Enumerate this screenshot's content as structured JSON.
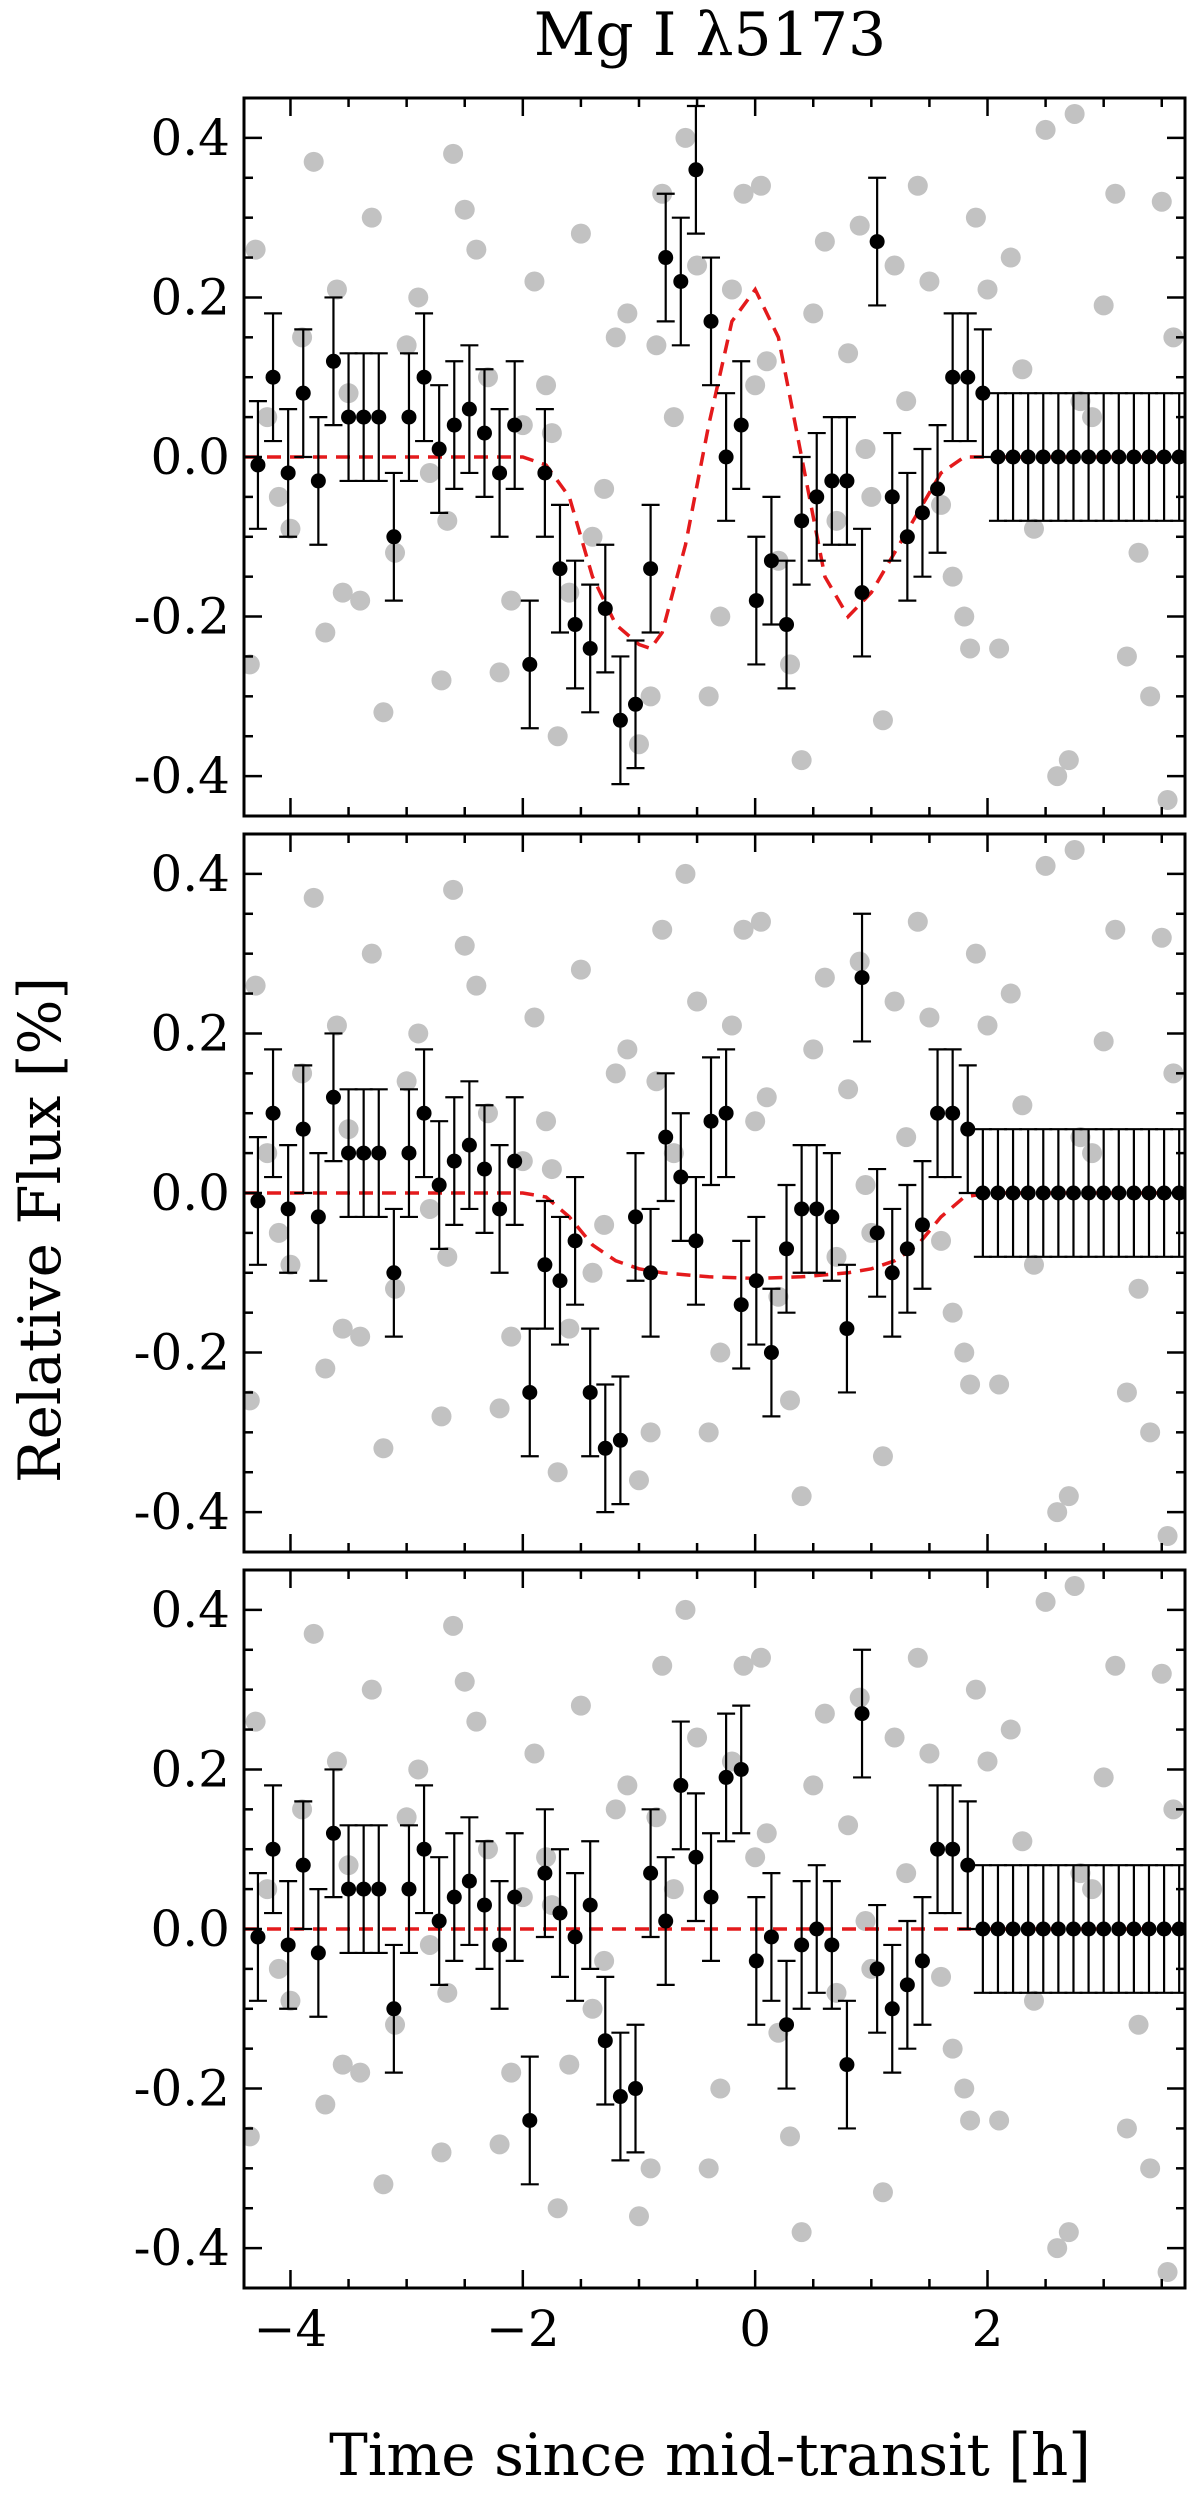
{
  "figure": {
    "title": "Mg I λ5173",
    "ylabel": "Relative Flux [%]",
    "xlabel": "Time since mid-transit [h]"
  },
  "colors": {
    "data_points": "#000000",
    "background_points": "#c2c2c2",
    "model_line": "#e41a1c",
    "axes": "#000000"
  },
  "chart_data": [
    {
      "type": "scatter",
      "panel": "top",
      "title": "Mg I λ5173",
      "xlim": [
        -4.4,
        3.7
      ],
      "ylim": [
        -0.45,
        0.45
      ],
      "xticks": [
        -4,
        -2,
        0,
        2
      ],
      "yticks": [
        -0.4,
        -0.2,
        0.0,
        0.2,
        0.4
      ],
      "ytick_labels": [
        "-0.4",
        "-0.2",
        "0.0",
        "0.2",
        "0.4"
      ],
      "xtick_labels": [],
      "binned": {
        "x": [
          -4.28,
          -4.15,
          -4.02,
          -3.89,
          -3.76,
          -3.63,
          -3.5,
          -3.37,
          -3.24,
          -3.11,
          -2.98,
          -2.85,
          -2.72,
          -2.59,
          -2.46,
          -2.33,
          -2.2,
          -2.07,
          -1.94,
          -1.81,
          -1.68,
          -1.55,
          -1.42,
          -1.29,
          -1.16,
          -1.03,
          -0.9,
          -0.77,
          -0.64,
          -0.51,
          -0.38,
          -0.25,
          -0.12,
          0.01,
          0.14,
          0.27,
          0.4,
          0.53,
          0.66,
          0.79,
          0.92,
          1.05,
          1.18,
          1.31,
          1.44,
          1.57,
          1.7,
          1.83,
          1.96,
          2.09,
          2.22,
          2.35,
          2.48,
          2.61,
          2.74,
          2.87,
          3.0,
          3.13,
          3.26,
          3.39,
          3.52,
          3.65
        ],
        "y": [
          -0.01,
          0.1,
          -0.02,
          0.08,
          -0.03,
          0.12,
          0.05,
          0.05,
          0.05,
          -0.1,
          0.05,
          0.1,
          0.01,
          0.04,
          0.06,
          0.03,
          -0.02,
          0.04,
          -0.26,
          -0.02,
          -0.14,
          -0.21,
          -0.24,
          -0.19,
          -0.33,
          -0.31,
          -0.14,
          0.25,
          0.22,
          0.36,
          0.17,
          0.0,
          0.04,
          -0.18,
          -0.13,
          -0.21,
          -0.08,
          -0.05,
          -0.03,
          -0.03,
          -0.17,
          0.27,
          -0.05,
          -0.1,
          -0.07,
          -0.04,
          0.1,
          0.1,
          0.08,
          0.0,
          0.0,
          0.0,
          0.0,
          0.0,
          0.0,
          0.0,
          0.0,
          0.0,
          0.0,
          0.0,
          0.0,
          0.0
        ],
        "err": 0.08
      },
      "background": {
        "x": [
          -4.3,
          -4.1,
          -3.9,
          -3.7,
          -3.5,
          -3.3,
          -3.1,
          -2.9,
          -2.7,
          -2.5,
          -2.3,
          -2.1,
          -1.9,
          -1.7,
          -1.5,
          -1.3,
          -1.1,
          -0.9,
          -0.7,
          -0.5,
          -0.3,
          -0.1,
          0.1,
          0.3,
          0.5,
          0.7,
          0.9,
          1.1,
          1.3,
          1.5,
          1.7,
          1.9,
          2.1,
          2.3,
          2.5,
          2.7,
          2.9,
          3.1,
          3.3,
          3.5,
          -4.2,
          -3.8,
          -3.4,
          -3.0,
          -2.6,
          -2.2,
          -1.8,
          -1.4,
          -1.0,
          -0.6,
          -0.2,
          0.2,
          0.6,
          1.0,
          1.4,
          1.8,
          2.2,
          2.6,
          3.0,
          3.4,
          -4.0,
          -3.6,
          -3.2,
          -2.8,
          -2.4,
          -2.0,
          -1.6,
          -1.2,
          -0.8,
          -0.4,
          0.0,
          0.4,
          0.8,
          1.2,
          1.6,
          2.0,
          2.4,
          2.8,
          3.2,
          3.6
        ],
        "y": [
          0.26,
          -0.05,
          0.15,
          -0.22,
          0.08,
          0.3,
          -0.12,
          0.2,
          -0.28,
          0.31,
          0.1,
          -0.18,
          0.22,
          -0.35,
          0.28,
          -0.04,
          0.18,
          -0.3,
          0.05,
          0.24,
          -0.2,
          0.33,
          0.12,
          -0.26,
          0.18,
          -0.08,
          0.29,
          -0.33,
          0.07,
          0.22,
          -0.15,
          0.3,
          -0.24,
          0.11,
          0.41,
          -0.38,
          0.05,
          0.33,
          -0.12,
          0.32,
          0.05,
          0.37,
          -0.18,
          0.14,
          0.38,
          -0.27,
          0.09,
          -0.1,
          -0.36,
          0.4,
          0.21,
          -0.13,
          0.27,
          -0.05,
          0.34,
          -0.2,
          0.25,
          -0.4,
          0.19,
          -0.3,
          -0.09,
          0.21,
          -0.32,
          -0.02,
          0.26,
          0.04,
          -0.17,
          0.15,
          0.33,
          -0.3,
          0.09,
          -0.38,
          0.13,
          0.24,
          -0.06,
          0.21,
          -0.09,
          0.07,
          -0.25,
          0.15
        ],
        "extra": [
          [
            -4.35,
            -0.26
          ],
          [
            -3.55,
            -0.17
          ],
          [
            -2.65,
            -0.08
          ],
          [
            -1.75,
            0.03
          ],
          [
            -0.85,
            0.14
          ],
          [
            0.05,
            0.34
          ],
          [
            0.95,
            0.01
          ],
          [
            1.85,
            -0.24
          ],
          [
            2.75,
            0.43
          ],
          [
            3.55,
            -0.43
          ]
        ]
      },
      "model": {
        "x": [
          -4.4,
          -2.2,
          -2.0,
          -1.8,
          -1.6,
          -1.4,
          -1.2,
          -1.0,
          -0.9,
          -0.8,
          -0.6,
          -0.4,
          -0.2,
          0.0,
          0.2,
          0.4,
          0.6,
          0.8,
          1.0,
          1.2,
          1.4,
          1.6,
          1.8,
          2.0,
          3.7
        ],
        "y": [
          0.0,
          0.0,
          0.0,
          -0.01,
          -0.05,
          -0.15,
          -0.21,
          -0.235,
          -0.24,
          -0.22,
          -0.11,
          0.04,
          0.17,
          0.21,
          0.15,
          0.0,
          -0.15,
          -0.2,
          -0.17,
          -0.12,
          -0.07,
          -0.02,
          0.0,
          0.0,
          0.0
        ]
      }
    },
    {
      "type": "scatter",
      "panel": "middle",
      "xlim": [
        -4.4,
        3.7
      ],
      "ylim": [
        -0.45,
        0.45
      ],
      "xticks": [
        -4,
        -2,
        0,
        2
      ],
      "yticks": [
        -0.4,
        -0.2,
        0.0,
        0.2,
        0.4
      ],
      "ytick_labels": [
        "-0.4",
        "-0.2",
        "0.0",
        "0.2",
        "0.4"
      ],
      "xtick_labels": [],
      "binned": {
        "x": [
          -4.28,
          -4.15,
          -4.02,
          -3.89,
          -3.76,
          -3.63,
          -3.5,
          -3.37,
          -3.24,
          -3.11,
          -2.98,
          -2.85,
          -2.72,
          -2.59,
          -2.46,
          -2.33,
          -2.2,
          -2.07,
          -1.94,
          -1.81,
          -1.68,
          -1.55,
          -1.42,
          -1.29,
          -1.16,
          -1.03,
          -0.9,
          -0.77,
          -0.64,
          -0.51,
          -0.38,
          -0.25,
          -0.12,
          0.01,
          0.14,
          0.27,
          0.4,
          0.53,
          0.66,
          0.79,
          0.92,
          1.05,
          1.18,
          1.31,
          1.44,
          1.57,
          1.7,
          1.83,
          1.96,
          2.09,
          2.22,
          2.35,
          2.48,
          2.61,
          2.74,
          2.87,
          3.0,
          3.13,
          3.26,
          3.39,
          3.52,
          3.65
        ],
        "y": [
          -0.01,
          0.1,
          -0.02,
          0.08,
          -0.03,
          0.12,
          0.05,
          0.05,
          0.05,
          -0.1,
          0.05,
          0.1,
          0.01,
          0.04,
          0.06,
          0.03,
          -0.02,
          0.04,
          -0.25,
          -0.09,
          -0.11,
          -0.06,
          -0.25,
          -0.32,
          -0.31,
          -0.03,
          -0.1,
          0.07,
          0.02,
          -0.06,
          0.09,
          0.1,
          -0.14,
          -0.11,
          -0.2,
          -0.07,
          -0.02,
          -0.02,
          -0.03,
          -0.17,
          0.27,
          -0.05,
          -0.1,
          -0.07,
          -0.04,
          0.1,
          0.1,
          0.08,
          0.0,
          0.0,
          0.0,
          0.0,
          0.0,
          0.0,
          0.0,
          0.0,
          0.0,
          0.0,
          0.0,
          0.0,
          0.0,
          0.0
        ],
        "err": 0.08
      },
      "background": {
        "x": [
          -4.3,
          -4.1,
          -3.9,
          -3.7,
          -3.5,
          -3.3,
          -3.1,
          -2.9,
          -2.7,
          -2.5,
          -2.3,
          -2.1,
          -1.9,
          -1.7,
          -1.5,
          -1.3,
          -1.1,
          -0.9,
          -0.7,
          -0.5,
          -0.3,
          -0.1,
          0.1,
          0.3,
          0.5,
          0.7,
          0.9,
          1.1,
          1.3,
          1.5,
          1.7,
          1.9,
          2.1,
          2.3,
          2.5,
          2.7,
          2.9,
          3.1,
          3.3,
          3.5,
          -4.2,
          -3.8,
          -3.4,
          -3.0,
          -2.6,
          -2.2,
          -1.8,
          -1.4,
          -1.0,
          -0.6,
          -0.2,
          0.2,
          0.6,
          1.0,
          1.4,
          1.8,
          2.2,
          2.6,
          3.0,
          3.4,
          -4.0,
          -3.6,
          -3.2,
          -2.8,
          -2.4,
          -2.0,
          -1.6,
          -1.2,
          -0.8,
          -0.4,
          0.0,
          0.4,
          0.8,
          1.2,
          1.6,
          2.0,
          2.4,
          2.8,
          3.2,
          3.6
        ],
        "y": [
          0.26,
          -0.05,
          0.15,
          -0.22,
          0.08,
          0.3,
          -0.12,
          0.2,
          -0.28,
          0.31,
          0.1,
          -0.18,
          0.22,
          -0.35,
          0.28,
          -0.04,
          0.18,
          -0.3,
          0.05,
          0.24,
          -0.2,
          0.33,
          0.12,
          -0.26,
          0.18,
          -0.08,
          0.29,
          -0.33,
          0.07,
          0.22,
          -0.15,
          0.3,
          -0.24,
          0.11,
          0.41,
          -0.38,
          0.05,
          0.33,
          -0.12,
          0.32,
          0.05,
          0.37,
          -0.18,
          0.14,
          0.38,
          -0.27,
          0.09,
          -0.1,
          -0.36,
          0.4,
          0.21,
          -0.13,
          0.27,
          -0.05,
          0.34,
          -0.2,
          0.25,
          -0.4,
          0.19,
          -0.3,
          -0.09,
          0.21,
          -0.32,
          -0.02,
          0.26,
          0.04,
          -0.17,
          0.15,
          0.33,
          -0.3,
          0.09,
          -0.38,
          0.13,
          0.24,
          -0.06,
          0.21,
          -0.09,
          0.07,
          -0.25,
          0.15
        ],
        "extra": [
          [
            -4.35,
            -0.26
          ],
          [
            -3.55,
            -0.17
          ],
          [
            -2.65,
            -0.08
          ],
          [
            -1.75,
            0.03
          ],
          [
            -0.85,
            0.14
          ],
          [
            0.05,
            0.34
          ],
          [
            0.95,
            0.01
          ],
          [
            1.85,
            -0.24
          ],
          [
            2.75,
            0.43
          ],
          [
            3.55,
            -0.43
          ]
        ]
      },
      "model": {
        "x": [
          -4.4,
          -2.2,
          -2.0,
          -1.8,
          -1.6,
          -1.4,
          -1.2,
          -1.0,
          -0.8,
          -0.4,
          0.0,
          0.4,
          0.8,
          1.0,
          1.2,
          1.4,
          1.6,
          1.8,
          2.0,
          3.7
        ],
        "y": [
          0.0,
          0.0,
          0.0,
          -0.005,
          -0.03,
          -0.065,
          -0.085,
          -0.095,
          -0.1,
          -0.105,
          -0.107,
          -0.105,
          -0.1,
          -0.095,
          -0.085,
          -0.065,
          -0.03,
          -0.005,
          0.0,
          0.0
        ]
      }
    },
    {
      "type": "scatter",
      "panel": "bottom",
      "xlim": [
        -4.4,
        3.7
      ],
      "ylim": [
        -0.45,
        0.45
      ],
      "xticks": [
        -4,
        -2,
        0,
        2
      ],
      "yticks": [
        -0.4,
        -0.2,
        0.0,
        0.2,
        0.4
      ],
      "ytick_labels": [
        "-0.4",
        "-0.2",
        "0.0",
        "0.2",
        "0.4"
      ],
      "xtick_labels": [
        "−4",
        "−2",
        "0",
        "2"
      ],
      "binned": {
        "x": [
          -4.28,
          -4.15,
          -4.02,
          -3.89,
          -3.76,
          -3.63,
          -3.5,
          -3.37,
          -3.24,
          -3.11,
          -2.98,
          -2.85,
          -2.72,
          -2.59,
          -2.46,
          -2.33,
          -2.2,
          -2.07,
          -1.94,
          -1.81,
          -1.68,
          -1.55,
          -1.42,
          -1.29,
          -1.16,
          -1.03,
          -0.9,
          -0.77,
          -0.64,
          -0.51,
          -0.38,
          -0.25,
          -0.12,
          0.01,
          0.14,
          0.27,
          0.4,
          0.53,
          0.66,
          0.79,
          0.92,
          1.05,
          1.18,
          1.31,
          1.44,
          1.57,
          1.7,
          1.83,
          1.96,
          2.09,
          2.22,
          2.35,
          2.48,
          2.61,
          2.74,
          2.87,
          3.0,
          3.13,
          3.26,
          3.39,
          3.52,
          3.65
        ],
        "y": [
          -0.01,
          0.1,
          -0.02,
          0.08,
          -0.03,
          0.12,
          0.05,
          0.05,
          0.05,
          -0.1,
          0.05,
          0.1,
          0.01,
          0.04,
          0.06,
          0.03,
          -0.02,
          0.04,
          -0.24,
          0.07,
          0.02,
          -0.01,
          0.03,
          -0.14,
          -0.21,
          -0.2,
          0.07,
          0.01,
          0.18,
          0.09,
          0.04,
          0.19,
          0.2,
          -0.04,
          -0.01,
          -0.12,
          -0.02,
          0.0,
          -0.02,
          -0.17,
          0.27,
          -0.05,
          -0.1,
          -0.07,
          -0.04,
          0.1,
          0.1,
          0.08,
          0.0,
          0.0,
          0.0,
          0.0,
          0.0,
          0.0,
          0.0,
          0.0,
          0.0,
          0.0,
          0.0,
          0.0,
          0.0,
          0.0
        ],
        "err": 0.08
      },
      "background": {
        "x": [
          -4.3,
          -4.1,
          -3.9,
          -3.7,
          -3.5,
          -3.3,
          -3.1,
          -2.9,
          -2.7,
          -2.5,
          -2.3,
          -2.1,
          -1.9,
          -1.7,
          -1.5,
          -1.3,
          -1.1,
          -0.9,
          -0.7,
          -0.5,
          -0.3,
          -0.1,
          0.1,
          0.3,
          0.5,
          0.7,
          0.9,
          1.1,
          1.3,
          1.5,
          1.7,
          1.9,
          2.1,
          2.3,
          2.5,
          2.7,
          2.9,
          3.1,
          3.3,
          3.5,
          -4.2,
          -3.8,
          -3.4,
          -3.0,
          -2.6,
          -2.2,
          -1.8,
          -1.4,
          -1.0,
          -0.6,
          -0.2,
          0.2,
          0.6,
          1.0,
          1.4,
          1.8,
          2.2,
          2.6,
          3.0,
          3.4,
          -4.0,
          -3.6,
          -3.2,
          -2.8,
          -2.4,
          -2.0,
          -1.6,
          -1.2,
          -0.8,
          -0.4,
          0.0,
          0.4,
          0.8,
          1.2,
          1.6,
          2.0,
          2.4,
          2.8,
          3.2,
          3.6
        ],
        "y": [
          0.26,
          -0.05,
          0.15,
          -0.22,
          0.08,
          0.3,
          -0.12,
          0.2,
          -0.28,
          0.31,
          0.1,
          -0.18,
          0.22,
          -0.35,
          0.28,
          -0.04,
          0.18,
          -0.3,
          0.05,
          0.24,
          -0.2,
          0.33,
          0.12,
          -0.26,
          0.18,
          -0.08,
          0.29,
          -0.33,
          0.07,
          0.22,
          -0.15,
          0.3,
          -0.24,
          0.11,
          0.41,
          -0.38,
          0.05,
          0.33,
          -0.12,
          0.32,
          0.05,
          0.37,
          -0.18,
          0.14,
          0.38,
          -0.27,
          0.09,
          -0.1,
          -0.36,
          0.4,
          0.21,
          -0.13,
          0.27,
          -0.05,
          0.34,
          -0.2,
          0.25,
          -0.4,
          0.19,
          -0.3,
          -0.09,
          0.21,
          -0.32,
          -0.02,
          0.26,
          0.04,
          -0.17,
          0.15,
          0.33,
          -0.3,
          0.09,
          -0.38,
          0.13,
          0.24,
          -0.06,
          0.21,
          -0.09,
          0.07,
          -0.25,
          0.15
        ],
        "extra": [
          [
            -4.35,
            -0.26
          ],
          [
            -3.55,
            -0.17
          ],
          [
            -2.65,
            -0.08
          ],
          [
            -1.75,
            0.03
          ],
          [
            -0.85,
            0.14
          ],
          [
            0.05,
            0.34
          ],
          [
            0.95,
            0.01
          ],
          [
            1.85,
            -0.24
          ],
          [
            2.75,
            0.43
          ],
          [
            3.55,
            -0.43
          ]
        ]
      },
      "model": {
        "x": [
          -4.4,
          3.7
        ],
        "y": [
          0.0,
          0.0
        ]
      }
    }
  ]
}
